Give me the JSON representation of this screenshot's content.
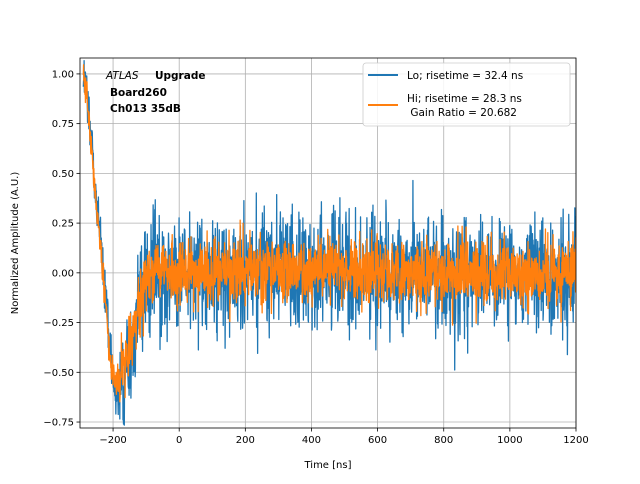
{
  "chart_data": {
    "type": "line",
    "xlabel": "Time [ns]",
    "ylabel": "Normalized Amplitude (A.U.)",
    "xlim": [
      -300,
      1200
    ],
    "ylim": [
      -0.78,
      1.08
    ],
    "xticks": [
      -200,
      0,
      200,
      400,
      600,
      800,
      1000,
      1200
    ],
    "yticks": [
      -0.75,
      -0.5,
      -0.25,
      0.0,
      0.25,
      0.5,
      0.75,
      1.0
    ],
    "xtick_labels": [
      "−200",
      "0",
      "200",
      "400",
      "600",
      "800",
      "1000",
      "1200"
    ],
    "ytick_labels": [
      "−0.75",
      "−0.50",
      "−0.25",
      "0.00",
      "0.25",
      "0.50",
      "0.75",
      "1.00"
    ],
    "grid": true,
    "legend_position": "top-right",
    "annotation": {
      "italic": "ATLAS",
      "bold": "Upgrade",
      "line2": "Board260",
      "line3": "Ch013 35dB"
    },
    "series": [
      {
        "name": "Lo; risetime = 32.4 ns",
        "color": "#1f77b4",
        "noise": 0.14,
        "envelope_x": [
          -290,
          -280,
          -270,
          -260,
          -250,
          -240,
          -230,
          -220,
          -210,
          -200,
          -190,
          -180,
          -170,
          -160,
          -150,
          -140,
          -130,
          -120,
          -110,
          -100,
          -80,
          -60,
          -40,
          0,
          100,
          300,
          600,
          1000,
          1200
        ],
        "envelope_y": [
          0.95,
          0.93,
          0.75,
          0.55,
          0.35,
          0.2,
          0.02,
          -0.15,
          -0.4,
          -0.55,
          -0.6,
          -0.58,
          -0.55,
          -0.48,
          -0.4,
          -0.32,
          -0.25,
          -0.18,
          -0.1,
          -0.05,
          -0.02,
          0.0,
          0.0,
          0.0,
          0.0,
          0.01,
          0.0,
          0.0,
          0.0
        ]
      },
      {
        "name": "Hi; risetime = 28.3 ns\n Gain Ratio = 20.682",
        "color": "#ff7f0e",
        "noise": 0.08,
        "envelope_x": [
          -290,
          -280,
          -270,
          -260,
          -250,
          -240,
          -230,
          -220,
          -210,
          -200,
          -190,
          -180,
          -170,
          -160,
          -150,
          -140,
          -130,
          -120,
          -110,
          -100,
          -80,
          -60,
          -40,
          0,
          100,
          300,
          600,
          1000,
          1200
        ],
        "envelope_y": [
          0.97,
          0.92,
          0.72,
          0.52,
          0.33,
          0.18,
          0.0,
          -0.18,
          -0.42,
          -0.52,
          -0.55,
          -0.52,
          -0.48,
          -0.42,
          -0.35,
          -0.28,
          -0.22,
          -0.15,
          -0.08,
          -0.04,
          -0.01,
          0.0,
          0.0,
          0.0,
          0.0,
          0.02,
          0.0,
          0.0,
          0.0
        ]
      }
    ]
  }
}
